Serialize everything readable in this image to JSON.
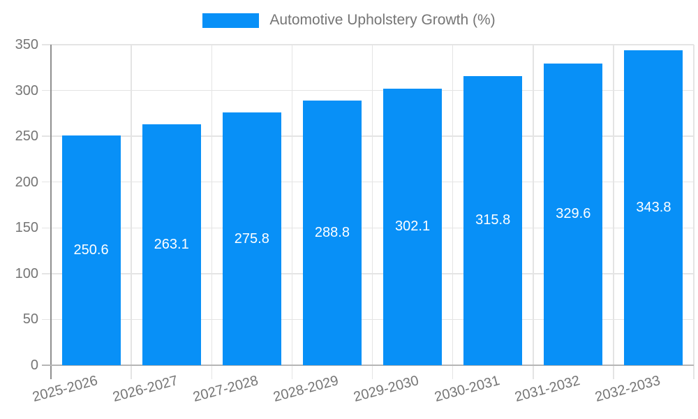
{
  "legend": {
    "label": "Automotive Upholstery Growth (%)"
  },
  "chart_data": {
    "type": "bar",
    "title": "Automotive Upholstery Growth (%)",
    "categories": [
      "2025-2026",
      "2026-2027",
      "2027-2028",
      "2028-2029",
      "2029-2030",
      "2030-2031",
      "2031-2032",
      "2032-2033"
    ],
    "series": [
      {
        "name": "Automotive Upholstery Growth (%)",
        "values": [
          250.6,
          263.1,
          275.8,
          288.8,
          302.1,
          315.8,
          329.6,
          343.8
        ]
      }
    ],
    "values": [
      250.6,
      263.1,
      275.8,
      288.8,
      302.1,
      315.8,
      329.6,
      343.8
    ],
    "value_labels": [
      "250.6",
      "263.1",
      "275.8",
      "288.8",
      "302.1",
      "315.8",
      "329.6",
      "343.8"
    ],
    "value_label_position": "inside-center",
    "xlabel": "",
    "ylabel": "",
    "ylim": [
      0,
      350
    ],
    "yticks": [
      0,
      50,
      100,
      150,
      200,
      250,
      300,
      350
    ],
    "grid": true,
    "legend_position": "top-center",
    "x_label_rotation_deg": -15,
    "colors": {
      "bar": "#0890f7",
      "grid": "#e4e4e4",
      "axis_line": "#8f8f8f",
      "baseline": "#b5b5b5",
      "tick_text": "#757575",
      "value_text": "#ffffff",
      "background": "#ffffff"
    }
  }
}
